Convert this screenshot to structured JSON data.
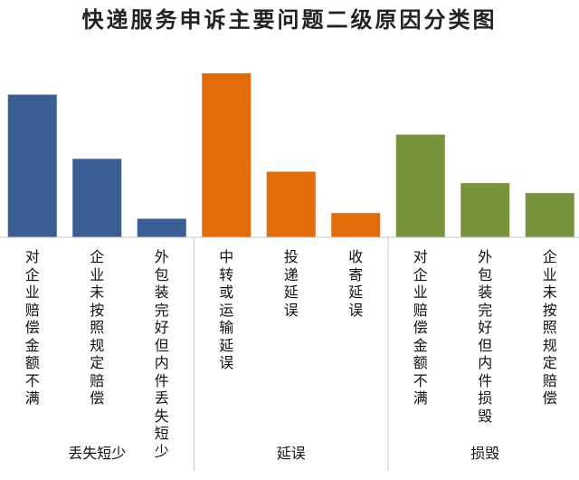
{
  "chart_data": {
    "type": "bar",
    "title": "快递服务申诉主要问题二级原因分类图",
    "xlabel": "",
    "ylabel": "",
    "grid": false,
    "legend": "none",
    "groups": [
      {
        "name": "丢失短少",
        "color": "#3b5f94",
        "categories": [
          "对企业赔偿金额不满",
          "企业未按照规定赔偿",
          "外包装完好但内件丢失短少"
        ],
        "values": [
          100,
          55,
          13
        ]
      },
      {
        "name": "延误",
        "color": "#e36c0a",
        "categories": [
          "中转或运输延误",
          "投递延误",
          "收寄延误"
        ],
        "values": [
          115,
          46,
          17
        ]
      },
      {
        "name": "损毁",
        "color": "#77933c",
        "categories": [
          "对企业赔偿金额不满",
          "外包装完好但内件损毁",
          "企业未按照规定赔偿"
        ],
        "values": [
          72,
          38,
          31
        ]
      }
    ],
    "ylim": [
      0,
      120
    ]
  }
}
